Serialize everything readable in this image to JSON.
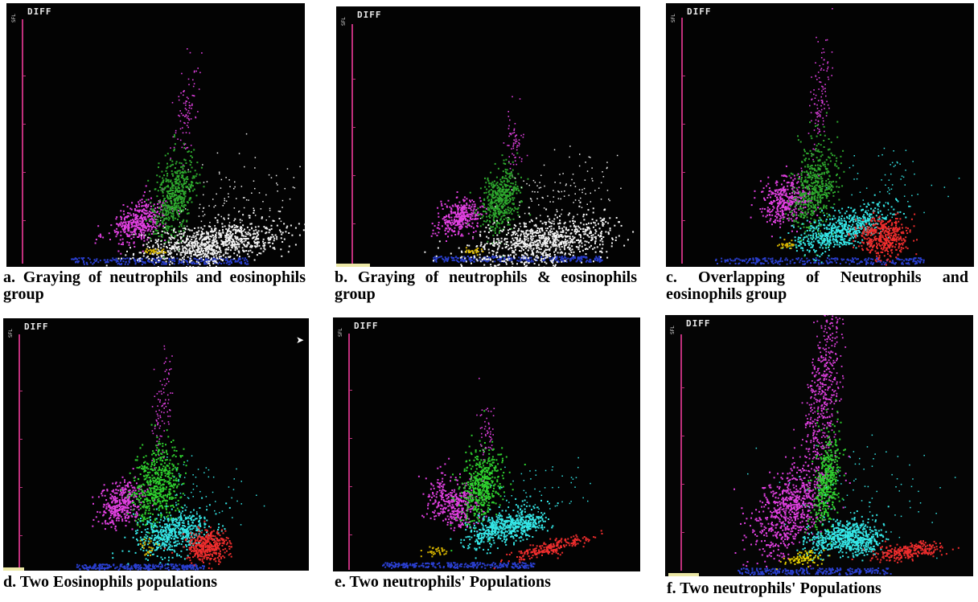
{
  "panels": [
    {
      "id": "a",
      "screen_label": "DIFF",
      "axis_label": "SFL",
      "caption": "a. Graying of neutrophils and eosinophils group",
      "populations": [
        {
          "name": "monocytes-cluster",
          "color": "#e040e0"
        },
        {
          "name": "lymphocytes-cluster",
          "color": "#2ea82e"
        },
        {
          "name": "neutrophils-eosinophils-cluster",
          "color": "#f2f2f2",
          "state": "grayed"
        },
        {
          "name": "debris-cluster",
          "color": "#2a3fcf"
        },
        {
          "name": "small-yellow-cluster",
          "color": "#d6b400"
        }
      ]
    },
    {
      "id": "b",
      "screen_label": "DIFF",
      "axis_label": "SFL",
      "caption": "b. Graying of neutrophils & eosinophils group",
      "populations": [
        {
          "name": "monocytes-cluster",
          "color": "#e040e0"
        },
        {
          "name": "lymphocytes-cluster",
          "color": "#2ea82e"
        },
        {
          "name": "neutrophils-eosinophils-cluster",
          "color": "#f2f2f2",
          "state": "grayed"
        },
        {
          "name": "debris-cluster",
          "color": "#2a3fcf"
        },
        {
          "name": "small-yellow-cluster",
          "color": "#d6b400"
        }
      ]
    },
    {
      "id": "c",
      "screen_label": "DIFF",
      "axis_label": "SFL",
      "caption": "c. Overlapping of Neutrophils and eosinophils group",
      "populations": [
        {
          "name": "monocytes-cluster",
          "color": "#e040e0"
        },
        {
          "name": "lymphocytes-cluster",
          "color": "#2ea82e"
        },
        {
          "name": "neutrophils-cluster",
          "color": "#35e6e6"
        },
        {
          "name": "eosinophils-cluster",
          "color": "#ee2d2d"
        },
        {
          "name": "debris-cluster",
          "color": "#2a3fcf"
        },
        {
          "name": "small-yellow-cluster",
          "color": "#d6b400"
        }
      ]
    },
    {
      "id": "d",
      "screen_label": "DIFF",
      "axis_label": "SFL",
      "caption": "d. Two Eosinophils populations",
      "populations": [
        {
          "name": "monocytes-cluster",
          "color": "#e040e0"
        },
        {
          "name": "lymphocytes-cluster",
          "color": "#2fd02f"
        },
        {
          "name": "neutrophils-cluster",
          "color": "#35e6e6"
        },
        {
          "name": "eosinophils-cluster",
          "color": "#ee2d2d"
        },
        {
          "name": "debris-cluster",
          "color": "#2a3fcf"
        },
        {
          "name": "small-yellow-cluster",
          "color": "#d6b400"
        }
      ]
    },
    {
      "id": "e",
      "screen_label": "DIFF",
      "axis_label": "SFL",
      "caption": "e. Two neutrophils' Populations",
      "populations": [
        {
          "name": "monocytes-cluster",
          "color": "#e040e0"
        },
        {
          "name": "lymphocytes-cluster",
          "color": "#2fd02f"
        },
        {
          "name": "neutrophils-cluster",
          "color": "#35e6e6"
        },
        {
          "name": "eosinophils-cluster",
          "color": "#ee2d2d"
        },
        {
          "name": "debris-cluster",
          "color": "#2a3fcf"
        },
        {
          "name": "small-yellow-cluster",
          "color": "#d6b400"
        }
      ]
    },
    {
      "id": "f",
      "screen_label": "DIFF",
      "axis_label": "SFL",
      "caption": "f. Two neutrophils' Populations",
      "populations": [
        {
          "name": "monocytes-cluster",
          "color": "#e040e0"
        },
        {
          "name": "lymphocytes-cluster",
          "color": "#2fd02f"
        },
        {
          "name": "neutrophils-cluster",
          "color": "#35e6e6"
        },
        {
          "name": "eosinophils-cluster",
          "color": "#ee2d2d"
        },
        {
          "name": "debris-cluster",
          "color": "#2a3fcf"
        },
        {
          "name": "small-yellow-cluster",
          "color": "#e6d000"
        }
      ]
    }
  ]
}
